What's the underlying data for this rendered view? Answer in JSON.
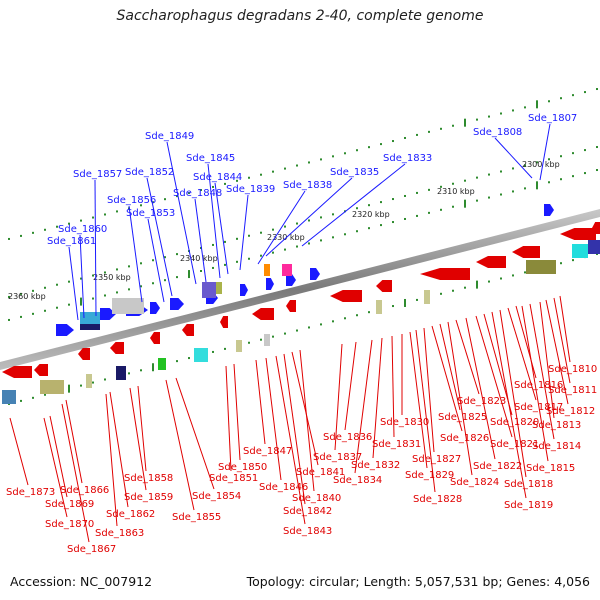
{
  "title": "Saccharophagus degradans 2-40, complete genome",
  "footer": {
    "accession": "Accession: NC_007912",
    "summary": "Topology: circular; Length: 5,057,531 bp; Genes: 4,056"
  },
  "colors": {
    "forward": "#1a1aff",
    "reverse": "#e00000",
    "backbone": "#8a8a8a",
    "tick": "#2e8b2e"
  },
  "kbp_labels": [
    "2300 kbp",
    "2310 kbp",
    "2320 kbp",
    "2330 kbp",
    "2340 kbp",
    "2350 kbp",
    "2360 kbp"
  ],
  "forward_genes": [
    "Sde_1807",
    "Sde_1808",
    "Sde_1833",
    "Sde_1835",
    "Sde_1838",
    "Sde_1839",
    "Sde_1844",
    "Sde_1845",
    "Sde_1848",
    "Sde_1849",
    "Sde_1852",
    "Sde_1853",
    "Sde_1856",
    "Sde_1857",
    "Sde_1860",
    "Sde_1861"
  ],
  "reverse_genes": [
    "Sde_1810",
    "Sde_1811",
    "Sde_1812",
    "Sde_1813",
    "Sde_1814",
    "Sde_1815",
    "Sde_1816",
    "Sde_1817",
    "Sde_1818",
    "Sde_1819",
    "Sde_1820",
    "Sde_1821",
    "Sde_1822",
    "Sde_1823",
    "Sde_1824",
    "Sde_1825",
    "Sde_1826",
    "Sde_1827",
    "Sde_1828",
    "Sde_1829",
    "Sde_1830",
    "Sde_1831",
    "Sde_1832",
    "Sde_1834",
    "Sde_1836",
    "Sde_1837",
    "Sde_1840",
    "Sde_1841",
    "Sde_1842",
    "Sde_1843",
    "Sde_1846",
    "Sde_1847",
    "Sde_1850",
    "Sde_1851",
    "Sde_1854",
    "Sde_1855",
    "Sde_1858",
    "Sde_1859",
    "Sde_1862",
    "Sde_1863",
    "Sde_1866",
    "Sde_1867",
    "Sde_1869",
    "Sde_1870",
    "Sde_1873"
  ]
}
